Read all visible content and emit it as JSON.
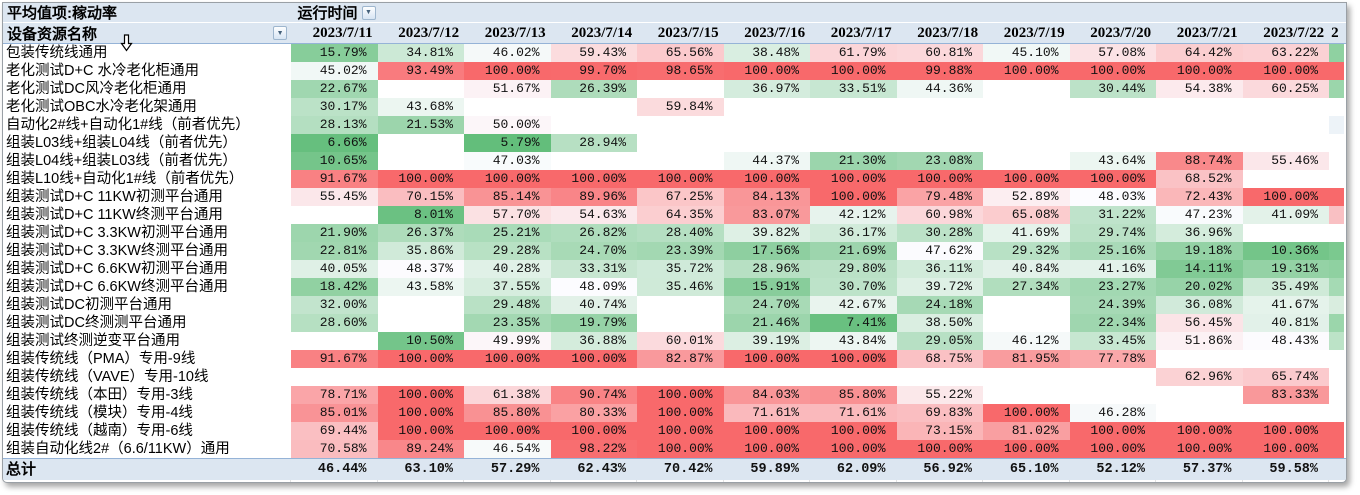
{
  "pivot": {
    "value_field_label": "平均值项:稼动率",
    "column_field_label": "运行时间",
    "row_field_label": "设备资源名称",
    "total_label": "总计",
    "partial_column_header": "2"
  },
  "columns": [
    "2023/7/11",
    "2023/7/12",
    "2023/7/13",
    "2023/7/14",
    "2023/7/15",
    "2023/7/16",
    "2023/7/17",
    "2023/7/18",
    "2023/7/19",
    "2023/7/20",
    "2023/7/21",
    "2023/7/22"
  ],
  "rows": [
    {
      "label": "包装传统线通用",
      "values": [
        15.79,
        34.81,
        46.02,
        59.43,
        65.56,
        38.48,
        61.79,
        60.81,
        45.1,
        57.08,
        64.42,
        63.22
      ],
      "sliver": "#8FD1A1"
    },
    {
      "label": "老化测试D+C 水冷老化柜通用",
      "values": [
        45.02,
        93.49,
        100.0,
        99.7,
        98.65,
        100.0,
        100.0,
        99.88,
        100.0,
        100.0,
        100.0,
        100.0
      ],
      "sliver": "#F8696B"
    },
    {
      "label": "老化测试DC风冷老化柜通用",
      "values": [
        22.67,
        null,
        51.67,
        26.39,
        null,
        36.97,
        33.51,
        44.36,
        null,
        30.44,
        54.38,
        60.25
      ],
      "sliver": "#9BD6AB"
    },
    {
      "label": "老化测试OBC水冷老化架通用",
      "values": [
        30.17,
        43.68,
        null,
        null,
        59.84,
        null,
        null,
        null,
        null,
        null,
        null,
        null
      ],
      "sliver": ""
    },
    {
      "label": "自动化2#线+自动化1#线（前者优先）",
      "values": [
        28.13,
        21.53,
        50.0,
        null,
        null,
        null,
        null,
        null,
        null,
        null,
        null,
        null
      ],
      "sliver": "#EDF3F8"
    },
    {
      "label": "组装L03线+组装L04线（前者优先）",
      "values": [
        6.66,
        null,
        5.79,
        28.94,
        null,
        null,
        null,
        null,
        null,
        null,
        null,
        null
      ],
      "sliver": ""
    },
    {
      "label": "组装L04线+组装L03线（前者优先）",
      "values": [
        10.65,
        null,
        47.03,
        null,
        null,
        44.37,
        21.3,
        23.08,
        null,
        43.64,
        88.74,
        55.46
      ],
      "sliver": ""
    },
    {
      "label": "组装L10线+自动化1#线（前者优先）",
      "values": [
        91.67,
        100.0,
        100.0,
        100.0,
        100.0,
        100.0,
        100.0,
        100.0,
        100.0,
        100.0,
        68.52,
        null
      ],
      "sliver": ""
    },
    {
      "label": "组装测试D+C 11KW初测平台通用",
      "values": [
        55.45,
        70.15,
        85.14,
        89.96,
        67.25,
        84.13,
        100.0,
        79.48,
        52.89,
        48.03,
        72.43,
        100.0
      ],
      "sliver": "#F8696B"
    },
    {
      "label": "组装测试D+C 11KW终测平台通用",
      "values": [
        null,
        8.01,
        57.7,
        54.63,
        64.35,
        83.07,
        42.12,
        60.98,
        65.08,
        31.22,
        47.23,
        41.09
      ],
      "sliver": "#F9C0C3"
    },
    {
      "label": "组装测试D+C 3.3KW初测平台通用",
      "values": [
        21.9,
        26.37,
        25.21,
        26.82,
        28.4,
        39.82,
        36.17,
        30.28,
        41.69,
        29.74,
        36.96,
        null
      ],
      "sliver": ""
    },
    {
      "label": "组装测试D+C 3.3KW终测平台通用",
      "values": [
        22.81,
        35.86,
        29.28,
        24.7,
        23.39,
        17.56,
        21.69,
        47.62,
        29.32,
        25.16,
        19.18,
        10.36
      ],
      "sliver": "#7BC98F"
    },
    {
      "label": "组装测试D+C 6.6KW初测平台通用",
      "values": [
        40.05,
        48.37,
        40.28,
        33.31,
        35.72,
        28.96,
        29.8,
        36.11,
        40.84,
        41.16,
        14.11,
        19.31
      ],
      "sliver": "#8FD1A1"
    },
    {
      "label": "组装测试D+C 6.6KW终测平台通用",
      "values": [
        18.42,
        43.58,
        37.55,
        48.09,
        35.46,
        15.91,
        30.7,
        39.72,
        27.34,
        23.27,
        20.02,
        35.49
      ],
      "sliver": "#A5DAB4"
    },
    {
      "label": "组装测试DC初测平台通用",
      "values": [
        32.0,
        null,
        29.48,
        40.74,
        null,
        24.7,
        42.67,
        24.18,
        null,
        24.39,
        36.08,
        41.67
      ],
      "sliver": "#D9EDDF"
    },
    {
      "label": "组装测试DC终测测平台通用",
      "values": [
        28.6,
        null,
        23.35,
        19.79,
        null,
        21.46,
        7.41,
        38.5,
        null,
        22.34,
        56.45,
        40.81
      ],
      "sliver": "#9BD6AB"
    },
    {
      "label": "组装测试终测逆变平台通用",
      "values": [
        null,
        10.5,
        49.99,
        36.88,
        60.01,
        39.19,
        43.84,
        29.05,
        46.12,
        33.45,
        51.86,
        48.43
      ],
      "sliver": "#BCE3C7"
    },
    {
      "label": "组装传统线（PMA）专用-9线",
      "values": [
        91.67,
        100.0,
        100.0,
        100.0,
        82.87,
        100.0,
        100.0,
        68.75,
        81.95,
        77.78,
        null,
        null
      ],
      "sliver": ""
    },
    {
      "label": "组装传统线（VAVE）专用-10线",
      "values": [
        null,
        null,
        null,
        null,
        null,
        null,
        null,
        null,
        null,
        null,
        62.96,
        65.74
      ],
      "sliver": ""
    },
    {
      "label": "组装传统线（本田）专用-3线",
      "values": [
        78.71,
        100.0,
        61.38,
        90.74,
        100.0,
        84.03,
        85.8,
        55.22,
        null,
        null,
        null,
        83.33
      ],
      "sliver": ""
    },
    {
      "label": "组装传统线（模块）专用-4线",
      "values": [
        85.01,
        100.0,
        85.8,
        80.33,
        100.0,
        71.61,
        71.61,
        69.83,
        100.0,
        46.28,
        null,
        null
      ],
      "sliver": ""
    },
    {
      "label": "组装传统线（越南）专用-6线",
      "values": [
        69.44,
        100.0,
        100.0,
        100.0,
        100.0,
        100.0,
        100.0,
        73.15,
        81.02,
        100.0,
        100.0,
        100.0
      ],
      "sliver": "#F8696B"
    },
    {
      "label": "组装自动化线2#（6.6/11KW）通用",
      "values": [
        70.58,
        89.24,
        46.54,
        98.22,
        100.0,
        100.0,
        100.0,
        100.0,
        100.0,
        100.0,
        100.0,
        100.0
      ],
      "sliver": "#F8696B"
    }
  ],
  "totals": [
    46.44,
    63.1,
    57.29,
    62.43,
    70.42,
    59.89,
    62.09,
    56.92,
    65.1,
    52.12,
    57.37,
    59.58
  ],
  "total_sliver": "#DCE6F1",
  "colors": {
    "header_bg": "#DCE6F1",
    "header_border": "#95B3D7",
    "scale_min_color": "#63BE7B",
    "scale_mid_color": "#FCFCFF",
    "scale_max_color": "#F8696B",
    "scale_min_value": 5.79,
    "scale_mid_value": 48,
    "scale_max_value": 100
  },
  "icons": {
    "dropdown_glyph": "▼"
  }
}
